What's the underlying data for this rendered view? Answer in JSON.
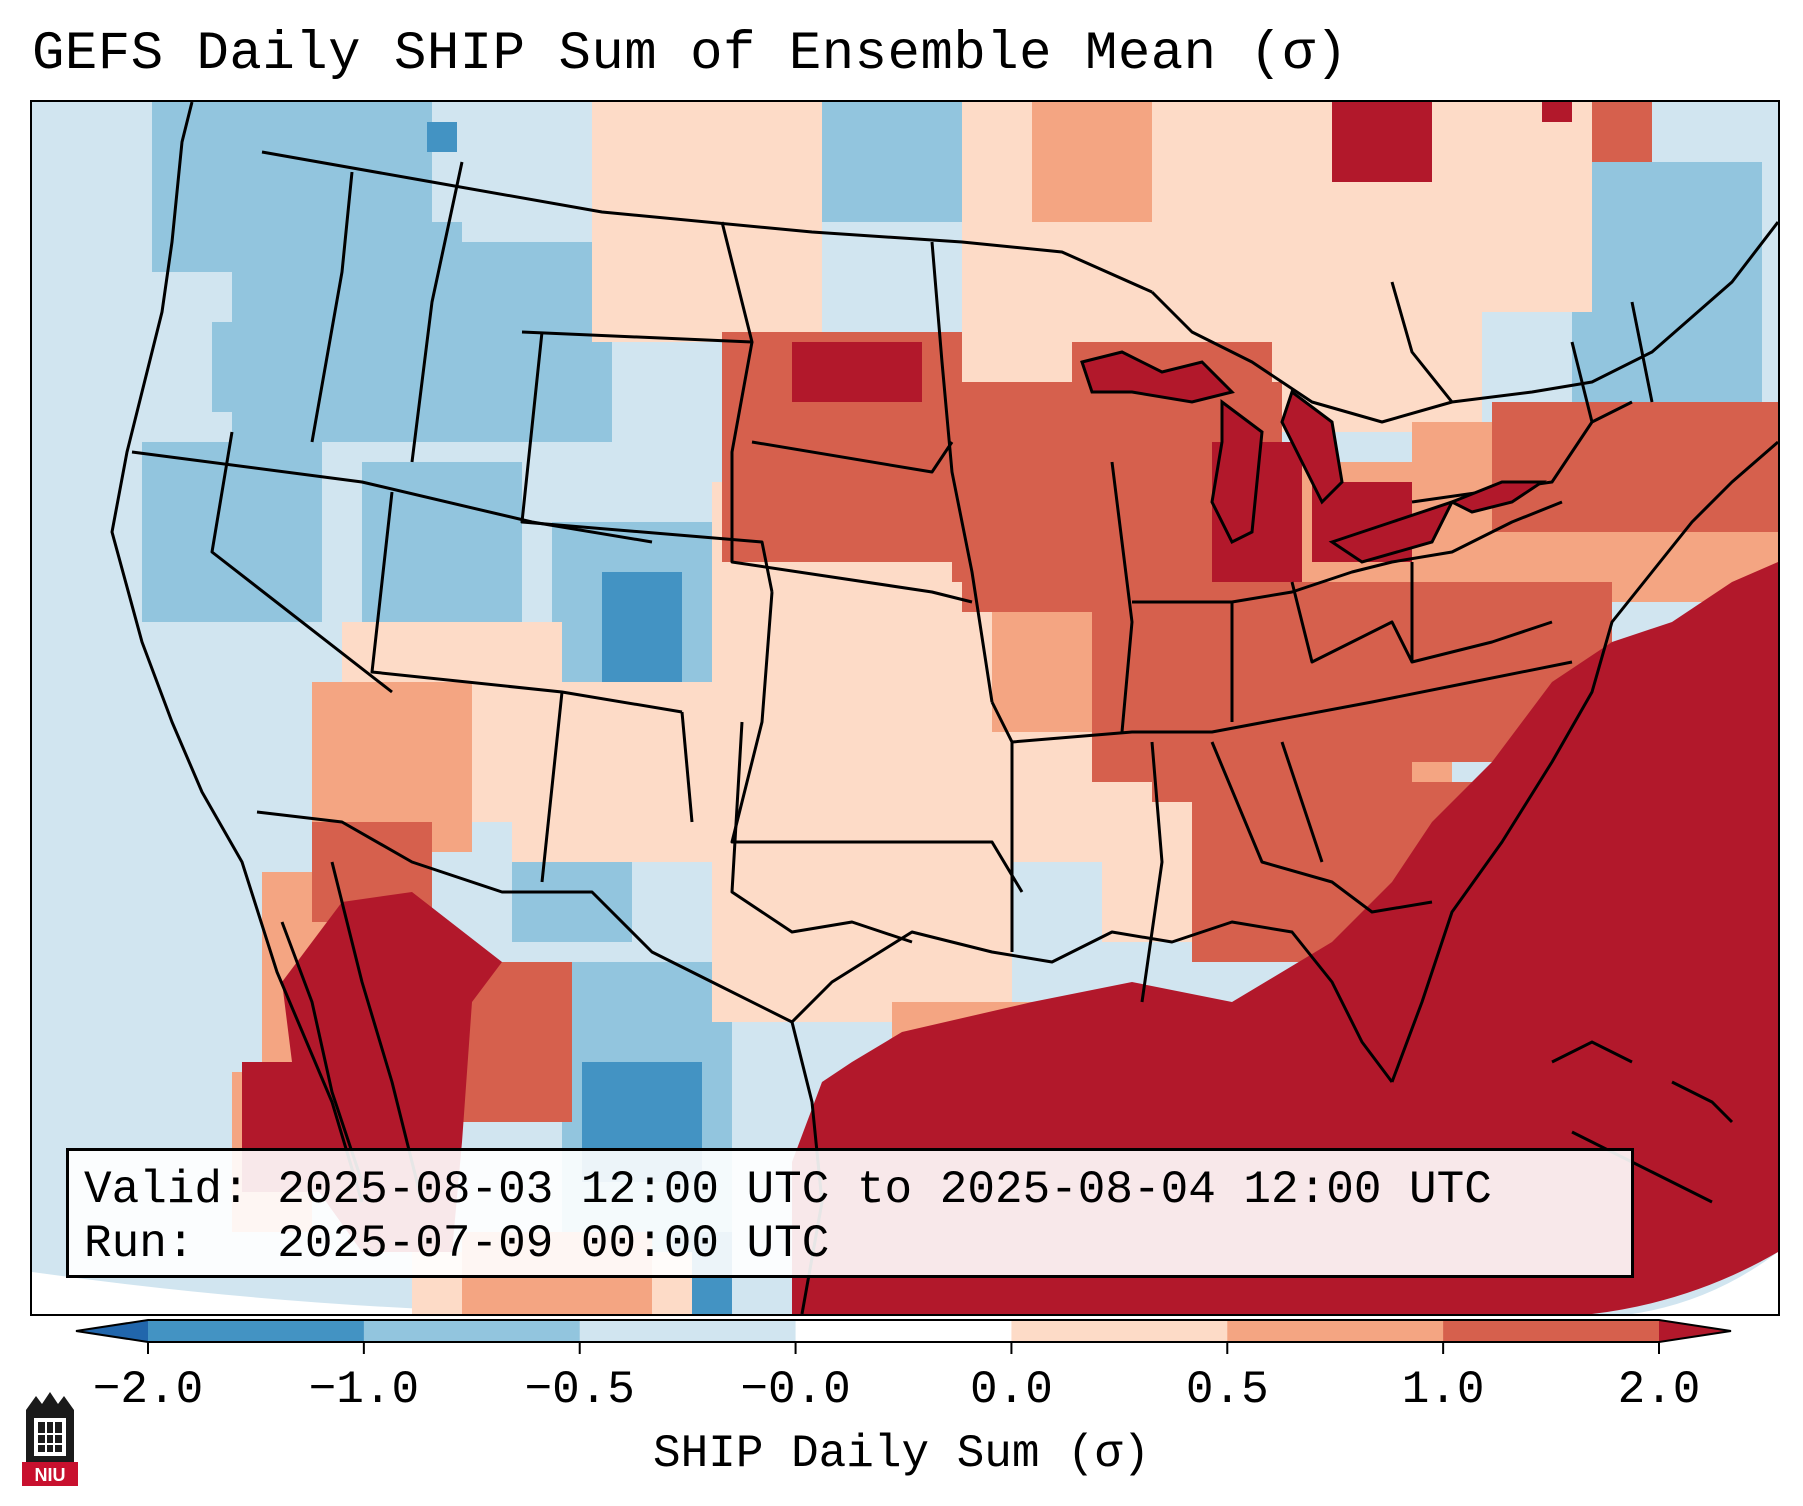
{
  "title": "GEFS Daily SHIP Sum of Ensemble Mean (σ)",
  "info": {
    "valid_label": "Valid:",
    "valid_value": "2025-08-03 12:00 UTC to 2025-08-04 12:00 UTC",
    "run_label": "Run:",
    "run_value": "2025-07-09 00:00 UTC"
  },
  "colorbar": {
    "label": "SHIP Daily Sum (σ)",
    "ticks": [
      "−2.0",
      "−1.0",
      "−0.5",
      "−0.0",
      "0.0",
      "0.5",
      "1.0",
      "2.0"
    ],
    "colors": [
      "#2166ac",
      "#4393c3",
      "#92c5de",
      "#d1e5f0",
      "#fddbc7",
      "#f4a582",
      "#d6604d",
      "#b2182b"
    ],
    "extend_low_color": "#2166ac",
    "extend_high_color": "#b2182b"
  },
  "map": {
    "background_color": "#d1e5f0",
    "land_outline_color": "#000000"
  },
  "logo": {
    "text": "NIU"
  }
}
